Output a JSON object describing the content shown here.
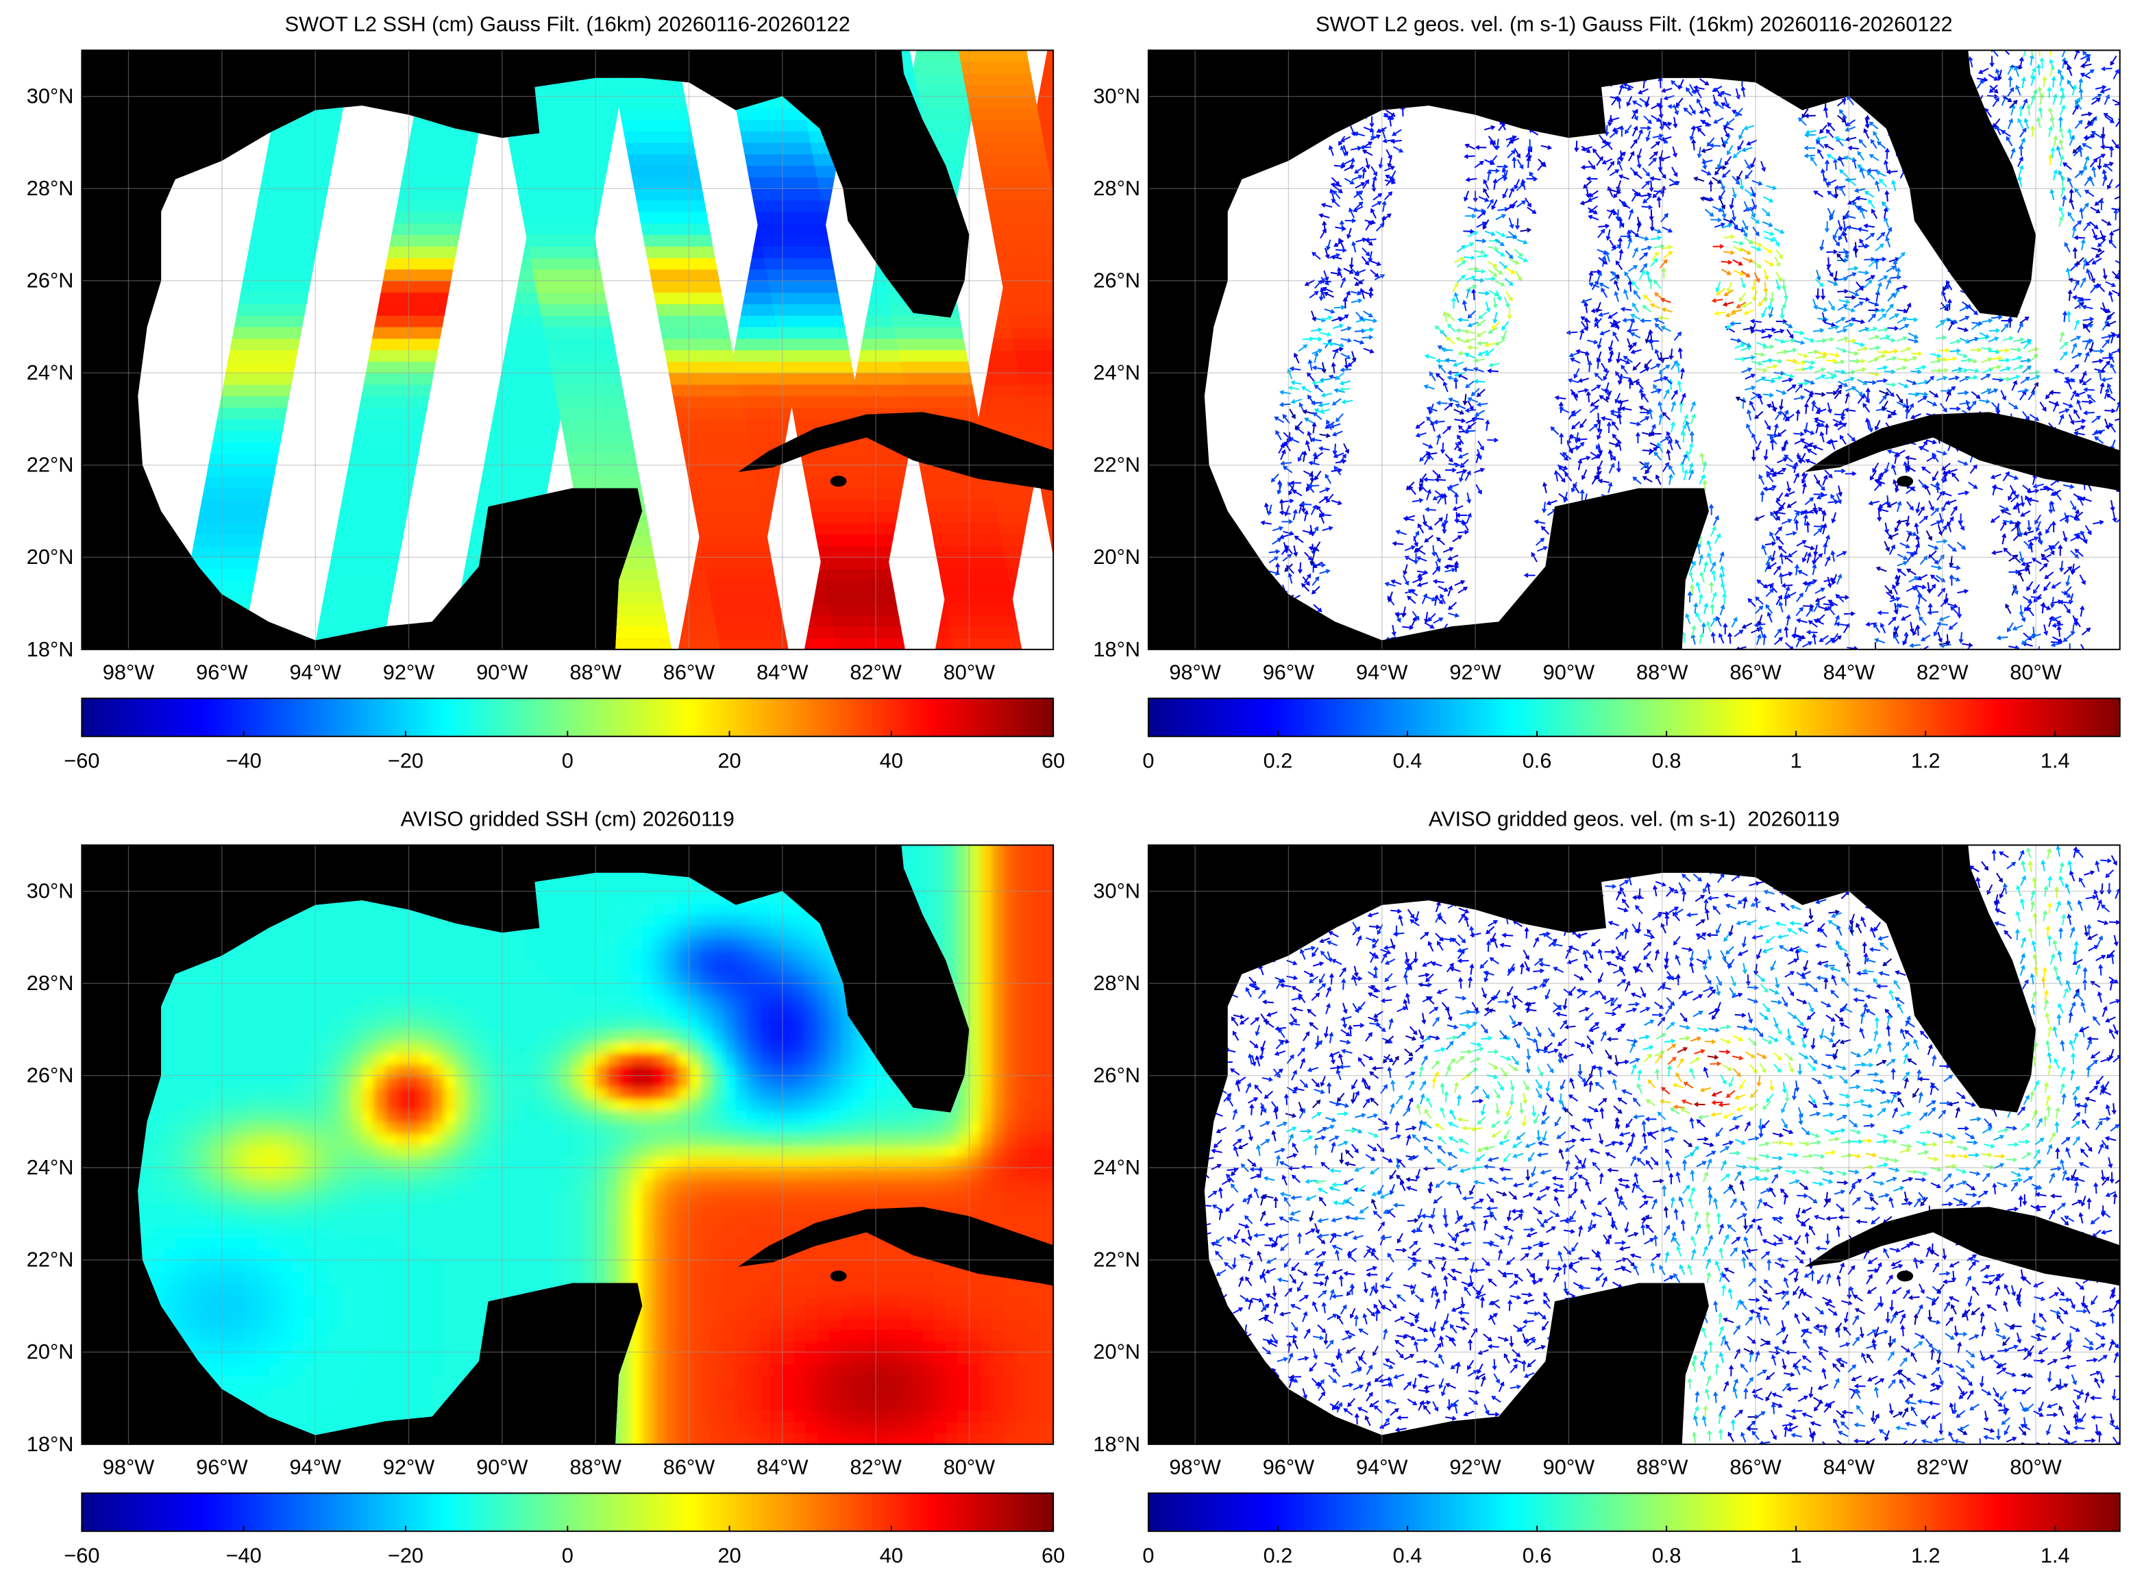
{
  "panels": [
    {
      "title": "SWOT L2 SSH (cm) Gauss Filt. (16km) 20260116-20260122",
      "xlim": [
        -99,
        -78.2
      ],
      "ylim": [
        18,
        31
      ],
      "xticks": [
        {
          "value": -98,
          "label": "98°W"
        },
        {
          "value": -96,
          "label": "96°W"
        },
        {
          "value": -94,
          "label": "94°W"
        },
        {
          "value": -92,
          "label": "92°W"
        },
        {
          "value": -90,
          "label": "90°W"
        },
        {
          "value": -88,
          "label": "88°W"
        },
        {
          "value": -86,
          "label": "86°W"
        },
        {
          "value": -84,
          "label": "84°W"
        },
        {
          "value": -82,
          "label": "82°W"
        },
        {
          "value": -80,
          "label": "80°W"
        }
      ],
      "yticks": [
        {
          "value": 18,
          "label": "18°N"
        },
        {
          "value": 20,
          "label": "20°N"
        },
        {
          "value": 22,
          "label": "22°N"
        },
        {
          "value": 24,
          "label": "24°N"
        },
        {
          "value": 26,
          "label": "26°N"
        },
        {
          "value": 28,
          "label": "28°N"
        },
        {
          "value": 30,
          "label": "30°N"
        }
      ],
      "colorbar": {
        "lim": [
          -60,
          60
        ],
        "ticks": [
          {
            "value": -60,
            "label": "−60"
          },
          {
            "value": -40,
            "label": "−40"
          },
          {
            "value": -20,
            "label": "−20"
          },
          0,
          20,
          40,
          60
        ]
      }
    },
    {
      "title": "SWOT L2 geos. vel. (m s-1) Gauss Filt. (16km) 20260116-20260122",
      "xlim": [
        -99,
        -78.2
      ],
      "ylim": [
        18,
        31
      ],
      "xticks": [
        {
          "value": -98,
          "label": "98°W"
        },
        {
          "value": -96,
          "label": "96°W"
        },
        {
          "value": -94,
          "label": "94°W"
        },
        {
          "value": -92,
          "label": "92°W"
        },
        {
          "value": -90,
          "label": "90°W"
        },
        {
          "value": -88,
          "label": "88°W"
        },
        {
          "value": -86,
          "label": "86°W"
        },
        {
          "value": -84,
          "label": "84°W"
        },
        {
          "value": -82,
          "label": "82°W"
        },
        {
          "value": -80,
          "label": "80°W"
        }
      ],
      "yticks": [
        {
          "value": 18,
          "label": "18°N"
        },
        {
          "value": 20,
          "label": "20°N"
        },
        {
          "value": 22,
          "label": "22°N"
        },
        {
          "value": 24,
          "label": "24°N"
        },
        {
          "value": 26,
          "label": "26°N"
        },
        {
          "value": 28,
          "label": "28°N"
        },
        {
          "value": 30,
          "label": "30°N"
        }
      ],
      "colorbar": {
        "lim": [
          0,
          1.5
        ],
        "ticks": [
          0,
          0.2,
          0.4,
          0.6,
          0.8,
          1,
          1.2,
          1.4
        ]
      }
    },
    {
      "title": "AVISO gridded SSH (cm) 20260119",
      "xlim": [
        -99,
        -78.2
      ],
      "ylim": [
        18,
        31
      ],
      "xticks": [
        {
          "value": -98,
          "label": "98°W"
        },
        {
          "value": -96,
          "label": "96°W"
        },
        {
          "value": -94,
          "label": "94°W"
        },
        {
          "value": -92,
          "label": "92°W"
        },
        {
          "value": -90,
          "label": "90°W"
        },
        {
          "value": -88,
          "label": "88°W"
        },
        {
          "value": -86,
          "label": "86°W"
        },
        {
          "value": -84,
          "label": "84°W"
        },
        {
          "value": -82,
          "label": "82°W"
        },
        {
          "value": -80,
          "label": "80°W"
        }
      ],
      "yticks": [
        {
          "value": 18,
          "label": "18°N"
        },
        {
          "value": 20,
          "label": "20°N"
        },
        {
          "value": 22,
          "label": "22°N"
        },
        {
          "value": 24,
          "label": "24°N"
        },
        {
          "value": 26,
          "label": "26°N"
        },
        {
          "value": 28,
          "label": "28°N"
        },
        {
          "value": 30,
          "label": "30°N"
        }
      ],
      "colorbar": {
        "lim": [
          -60,
          60
        ],
        "ticks": [
          {
            "value": -60,
            "label": "−60"
          },
          {
            "value": -40,
            "label": "−40"
          },
          {
            "value": -20,
            "label": "−20"
          },
          0,
          20,
          40,
          60
        ]
      }
    },
    {
      "title": "AVISO gridded geos. vel. (m s-1)  20260119",
      "xlim": [
        -99,
        -78.2
      ],
      "ylim": [
        18,
        31
      ],
      "xticks": [
        {
          "value": -98,
          "label": "98°W"
        },
        {
          "value": -96,
          "label": "96°W"
        },
        {
          "value": -94,
          "label": "94°W"
        },
        {
          "value": -92,
          "label": "92°W"
        },
        {
          "value": -90,
          "label": "90°W"
        },
        {
          "value": -88,
          "label": "88°W"
        },
        {
          "value": -86,
          "label": "86°W"
        },
        {
          "value": -84,
          "label": "84°W"
        },
        {
          "value": -82,
          "label": "82°W"
        },
        {
          "value": -80,
          "label": "80°W"
        }
      ],
      "yticks": [
        {
          "value": 18,
          "label": "18°N"
        },
        {
          "value": 20,
          "label": "20°N"
        },
        {
          "value": 22,
          "label": "22°N"
        },
        {
          "value": 24,
          "label": "24°N"
        },
        {
          "value": 26,
          "label": "26°N"
        },
        {
          "value": 28,
          "label": "28°N"
        },
        {
          "value": 30,
          "label": "30°N"
        }
      ],
      "colorbar": {
        "lim": [
          0,
          1.5
        ],
        "ticks": [
          0,
          0.2,
          0.4,
          0.6,
          0.8,
          1,
          1.2,
          1.4
        ]
      }
    }
  ]
}
